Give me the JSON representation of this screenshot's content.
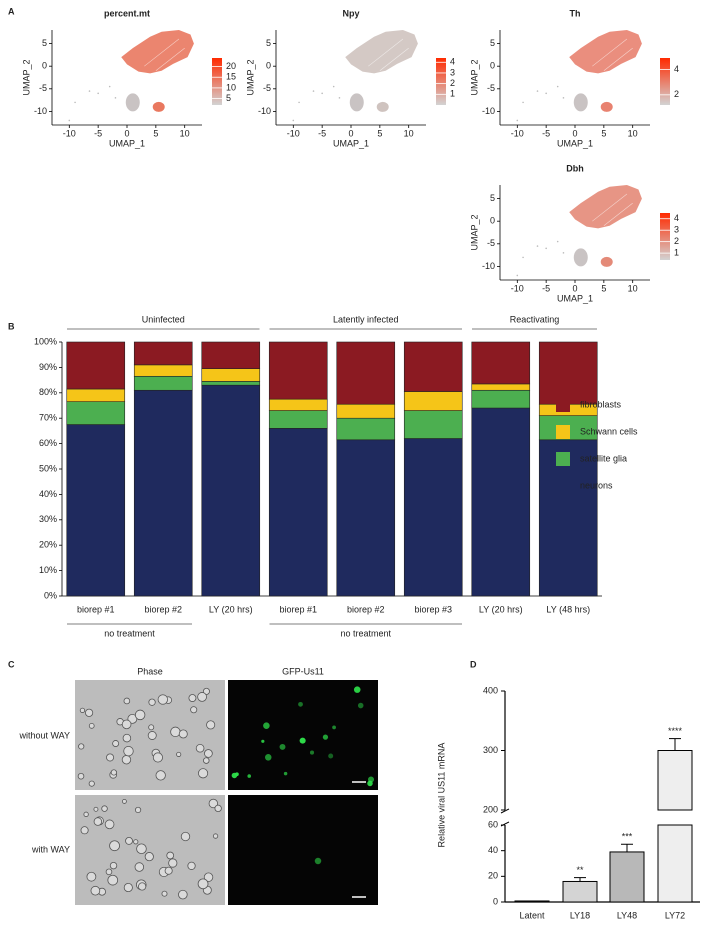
{
  "panel_labels": [
    "A",
    "B",
    "C",
    "D"
  ],
  "chart_data": [
    {
      "type": "umap",
      "title": "percent.mt",
      "xlabel": "UMAP_1",
      "ylabel": "UMAP_2",
      "xlim": [
        -13,
        13
      ],
      "ylim": [
        -13,
        8
      ],
      "xticks": [
        -10,
        -5,
        0,
        5,
        10
      ],
      "yticks": [
        -10,
        -5,
        0,
        5
      ],
      "color": "#e9785f",
      "colorbar": {
        "lim": [
          2,
          24
        ],
        "ticks": [
          5,
          10,
          15,
          20
        ],
        "colors": [
          "#d3d3d3",
          "#ff2a00"
        ]
      }
    },
    {
      "type": "umap",
      "title": "Npy",
      "xlabel": "UMAP_1",
      "ylabel": "UMAP_2",
      "xlim": [
        -13,
        13
      ],
      "ylim": [
        -13,
        8
      ],
      "xticks": [
        -10,
        -5,
        0,
        5,
        10
      ],
      "yticks": [
        -10,
        -5,
        0,
        5
      ],
      "color": "#cfc3bf",
      "colorbar": {
        "lim": [
          0,
          4.4
        ],
        "ticks": [
          1,
          2,
          3,
          4
        ],
        "colors": [
          "#d3d3d3",
          "#ff2a00"
        ]
      }
    },
    {
      "type": "umap",
      "title": "Th",
      "xlabel": "UMAP_1",
      "ylabel": "UMAP_2",
      "xlim": [
        -13,
        13
      ],
      "ylim": [
        -13,
        8
      ],
      "xticks": [
        -10,
        -5,
        0,
        5,
        10
      ],
      "yticks": [
        -10,
        -5,
        0,
        5
      ],
      "color": "#e88270",
      "colorbar": {
        "lim": [
          1.2,
          4.9
        ],
        "ticks": [
          2,
          4
        ],
        "colors": [
          "#d3d3d3",
          "#ff2a00"
        ]
      }
    },
    {
      "type": "umap",
      "title": "Dbh",
      "xlabel": "UMAP_1",
      "ylabel": "UMAP_2",
      "xlim": [
        -13,
        13
      ],
      "ylim": [
        -13,
        8
      ],
      "xticks": [
        -10,
        -5,
        0,
        5,
        10
      ],
      "yticks": [
        -10,
        -5,
        0,
        5
      ],
      "color": "#e48a78",
      "colorbar": {
        "lim": [
          0.4,
          4.5
        ],
        "ticks": [
          1,
          2,
          3,
          4
        ],
        "colors": [
          "#d3d3d3",
          "#ff2a00"
        ]
      }
    },
    {
      "type": "stacked_bar",
      "categories": [
        "biorep #1",
        "biorep #2",
        "LY (20 hrs)",
        "biorep #1",
        "biorep #2",
        "biorep #3",
        "LY (20 hrs)",
        "LY (48 hrs)"
      ],
      "ylim": [
        0,
        100
      ],
      "yticks": [
        {
          "value": 0,
          "label": "0%"
        },
        {
          "value": 10,
          "label": "10%"
        },
        {
          "value": 20,
          "label": "20%"
        },
        {
          "value": 30,
          "label": "30%"
        },
        {
          "value": 40,
          "label": "40%"
        },
        {
          "value": 50,
          "label": "50%"
        },
        {
          "value": 60,
          "label": "60%"
        },
        {
          "value": 70,
          "label": "70%"
        },
        {
          "value": 80,
          "label": "80%"
        },
        {
          "value": 90,
          "label": "90%"
        },
        {
          "value": 100,
          "label": "100%"
        }
      ],
      "series": [
        {
          "name": "neurons",
          "color": "#1f2a5e",
          "values": [
            67.5,
            81,
            83,
            66,
            61.5,
            62,
            74,
            61.5
          ]
        },
        {
          "name": "satellite glia",
          "color": "#4caf50",
          "values": [
            9,
            5.5,
            1.5,
            7,
            8.5,
            11,
            7,
            9.5
          ]
        },
        {
          "name": "Schwann cells",
          "color": "#f5c518",
          "values": [
            5,
            4.5,
            5,
            4.5,
            5.5,
            7.5,
            2.5,
            4.5
          ]
        },
        {
          "name": "fibroblasts",
          "color": "#8b1a22",
          "values": [
            18.5,
            9,
            10.5,
            22.5,
            24.5,
            19.5,
            16.5,
            24.5
          ]
        }
      ],
      "group_labels": [
        "Uninfected",
        "Latently infected",
        "Reactivating"
      ],
      "treatment_labels": [
        "no treatment",
        "no treatment"
      ],
      "legend": "right"
    },
    {
      "type": "bar",
      "categories": [
        "Latent",
        "LY18",
        "LY48",
        "LY72"
      ],
      "values": [
        0.8,
        16,
        39,
        300
      ],
      "errors": [
        null,
        3,
        6,
        20
      ],
      "colors": [
        "#ffffff",
        "#d4d4d4",
        "#b8b8b8",
        "#eeeeee"
      ],
      "significance": [
        null,
        "**",
        "***",
        "****"
      ],
      "ylabel": "Relative viral US11 mRNA",
      "ylim": [
        0,
        400
      ],
      "axis_break": [
        60,
        200
      ],
      "yticks": [
        0,
        20,
        40,
        60,
        200,
        300,
        400
      ]
    }
  ],
  "microscopy": {
    "columns": [
      "Phase",
      "GFP-Us11"
    ],
    "rows": [
      "without WAY",
      "with WAY"
    ]
  }
}
